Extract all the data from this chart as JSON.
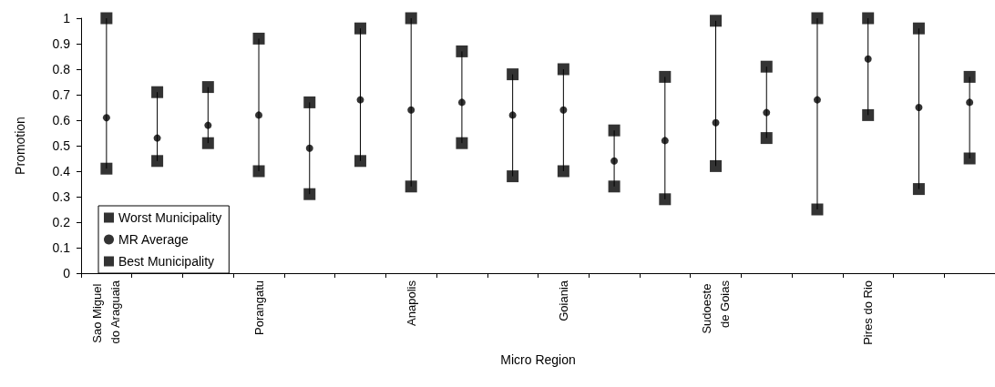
{
  "chart_data": {
    "type": "scatter",
    "xlabel": "Micro Region",
    "ylabel": "Promotion",
    "categories": [
      "Sao Miguel do Araguaia",
      null,
      null,
      "Porangatu",
      null,
      null,
      "Anapolis",
      null,
      null,
      "Goiania",
      null,
      null,
      "Sudoeste de Goias",
      null,
      null,
      "Pires do Rio",
      null,
      null
    ],
    "series": [
      {
        "name": "Worst Municipality",
        "color": "#000000",
        "marker": "square",
        "values": [
          0.41,
          0.44,
          0.51,
          0.4,
          0.31,
          0.44,
          0.34,
          0.51,
          0.38,
          0.4,
          0.34,
          0.29,
          0.42,
          0.53,
          0.25,
          0.62,
          0.33,
          0.45
        ]
      },
      {
        "name": "MR Average",
        "color": "#000000",
        "marker": "circle",
        "values": [
          0.61,
          0.53,
          0.58,
          0.62,
          0.49,
          0.68,
          0.64,
          0.67,
          0.62,
          0.64,
          0.44,
          0.52,
          0.59,
          0.63,
          0.68,
          0.84,
          0.65,
          0.67
        ]
      },
      {
        "name": "Best Municipality",
        "color": "#000000",
        "marker": "square",
        "values": [
          1.0,
          0.71,
          0.73,
          0.92,
          0.67,
          0.96,
          1.0,
          0.87,
          0.78,
          0.8,
          0.56,
          0.77,
          0.99,
          0.81,
          1.0,
          1.0,
          0.96,
          0.77
        ]
      }
    ],
    "ylim": [
      0,
      1
    ],
    "yticks": [
      0,
      {
        "value": 0.1,
        "label": "0.1"
      },
      {
        "value": 0.2,
        "label": "0.2"
      },
      {
        "value": 0.3,
        "label": "0.3"
      },
      {
        "value": 0.4,
        "label": "0.4"
      },
      {
        "value": 0.5,
        "label": "0.5"
      },
      {
        "value": 0.6,
        "label": "0.6"
      },
      {
        "value": 0.7,
        "label": "0.7"
      },
      {
        "value": 0.8,
        "label": "0.8"
      },
      {
        "value": 0.9,
        "label": "0.9"
      },
      1
    ],
    "legend": "bottom left"
  }
}
